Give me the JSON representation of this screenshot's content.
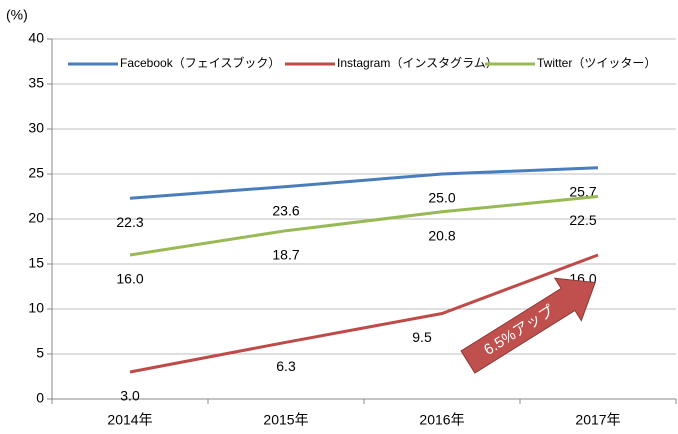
{
  "chart_data": {
    "type": "line",
    "y_axis_label": "(%)",
    "categories": [
      "2014年",
      "2015年",
      "2016年",
      "2017年"
    ],
    "series": [
      {
        "name": "Facebook（フェイスブック）",
        "color": "#4a7ebb",
        "values": [
          22.3,
          23.6,
          25.0,
          25.7
        ],
        "value_labels": [
          "22.3",
          "23.6",
          "25.0",
          "25.7"
        ]
      },
      {
        "name": "Instagram（インスタグラム）",
        "color": "#be4b48",
        "values": [
          3.0,
          6.3,
          9.5,
          16.0
        ],
        "value_labels": [
          "3.0",
          "6.3",
          "9.5",
          "16.0"
        ]
      },
      {
        "name": "Twitter（ツイッター）",
        "color": "#98b954",
        "values": [
          16.0,
          18.7,
          20.8,
          22.5
        ],
        "value_labels": [
          "16.0",
          "18.7",
          "20.8",
          "22.5"
        ]
      }
    ],
    "ylim": [
      0,
      40
    ],
    "yticks": [
      0,
      5,
      10,
      15,
      20,
      25,
      30,
      35,
      40
    ],
    "grid": true,
    "legend": "top",
    "annotation": "6.5%アップ"
  }
}
